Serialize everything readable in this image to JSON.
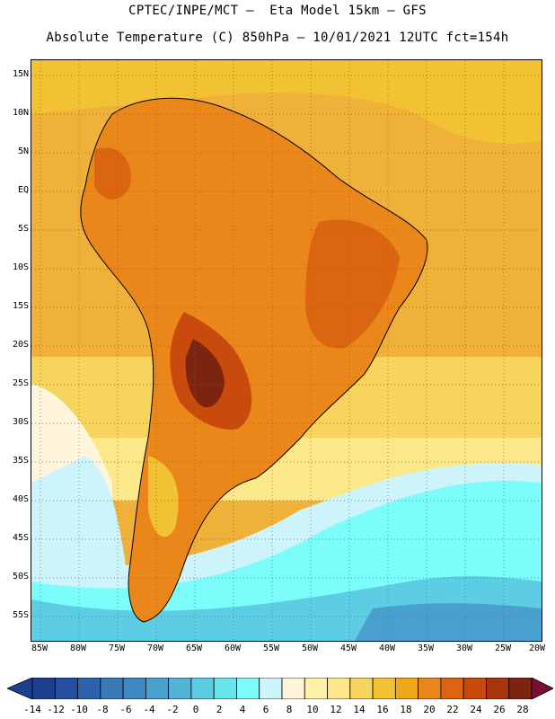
{
  "header": {
    "line1": "CPTEC/INPE/MCT –  Eta Model 15km – GFS",
    "line2": "Absolute Temperature (C) 850hPa – 10/01/2021 12UTC fct=154h"
  },
  "axes": {
    "y_labels": [
      "15N",
      "10N",
      "5N",
      "EQ",
      "5S",
      "10S",
      "15S",
      "20S",
      "25S",
      "30S",
      "35S",
      "40S",
      "45S",
      "50S",
      "55S"
    ],
    "x_labels": [
      "85W",
      "80W",
      "75W",
      "70W",
      "65W",
      "60W",
      "55W",
      "50W",
      "45W",
      "40W",
      "35W",
      "30W",
      "25W",
      "20W"
    ]
  },
  "colorbar": {
    "labels": [
      "-14",
      "-12",
      "-10",
      "-8",
      "-6",
      "-4",
      "-2",
      "0",
      "2",
      "4",
      "6",
      "8",
      "10",
      "12",
      "14",
      "16",
      "18",
      "20",
      "22",
      "24",
      "26",
      "28"
    ],
    "colors": [
      "#1d3f8f",
      "#24509f",
      "#2d63ad",
      "#3879b8",
      "#4189c2",
      "#49a0cf",
      "#52b5d8",
      "#5ccde2",
      "#68e4ec",
      "#7dfcfc",
      "#cdf3fb",
      "#fff4dc",
      "#fff3a8",
      "#fde889",
      "#f6d45d",
      "#f2c234",
      "#eea717",
      "#e9871b",
      "#dc6511",
      "#c84b0d",
      "#a9350c",
      "#7d2410"
    ]
  }
}
